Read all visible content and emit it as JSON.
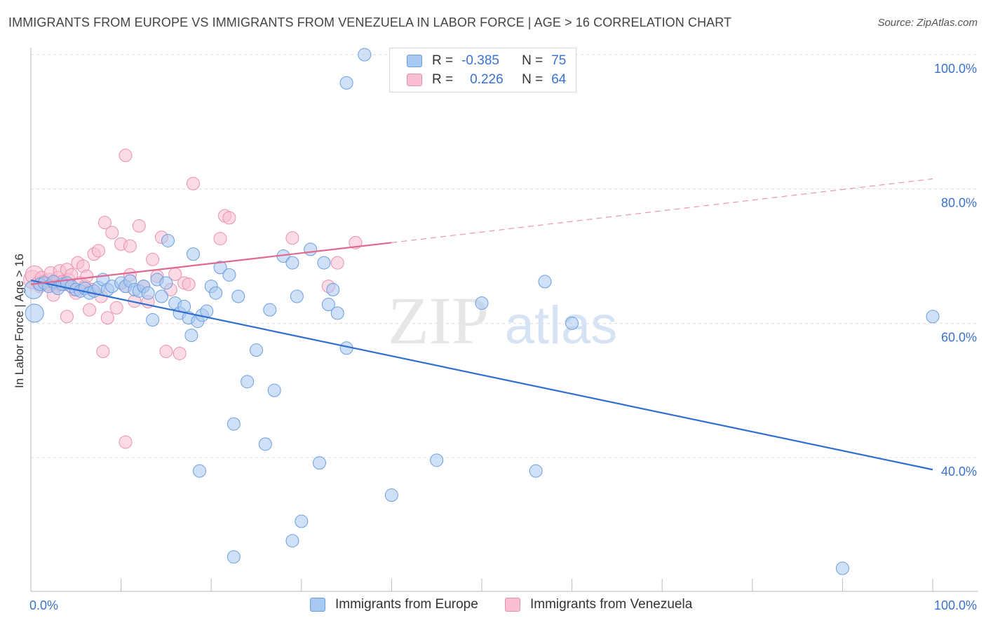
{
  "title": "IMMIGRANTS FROM EUROPE VS IMMIGRANTS FROM VENEZUELA IN LABOR FORCE | AGE > 16 CORRELATION CHART",
  "source": "Source: ZipAtlas.com",
  "watermark": {
    "zip": "ZIP",
    "atlas": "atlas"
  },
  "legend_top": {
    "rows": [
      {
        "r_label": "R =",
        "r_value": "-0.385",
        "n_label": "N =",
        "n_value": "75"
      },
      {
        "r_label": "R =",
        "r_value": "0.226",
        "n_label": "N =",
        "n_value": "64"
      }
    ]
  },
  "legend_bottom": {
    "europe": "Immigrants from Europe",
    "venezuela": "Immigrants from Venezuela"
  },
  "colors": {
    "europe_fill": "#a9c8f0",
    "europe_stroke": "#6a9ee0",
    "europe_line": "#2f6fd0",
    "venezuela_fill": "#f7bfd0",
    "venezuela_stroke": "#ea90ad",
    "venezuela_line": "#e2688f",
    "axis_label": "#3a72cf",
    "grid": "#dddddd"
  },
  "chart_data": {
    "type": "scatter",
    "title": "IMMIGRANTS FROM EUROPE VS IMMIGRANTS FROM VENEZUELA IN LABOR FORCE | AGE > 16 CORRELATION CHART",
    "xlabel": "",
    "ylabel": "In Labor Force | Age > 16",
    "xlim": [
      0,
      100
    ],
    "ylim": [
      20,
      102
    ],
    "x_tick_labels": [
      "0.0%",
      "100.0%"
    ],
    "y_ticks": [
      40,
      60,
      80,
      100
    ],
    "y_tick_labels": [
      "40.0%",
      "60.0%",
      "80.0%",
      "100.0%"
    ],
    "grid": true,
    "legend_position": "top-center",
    "series": [
      {
        "name": "Immigrants from Europe",
        "points": [
          [
            0.3,
            65.0
          ],
          [
            0.4,
            61.5
          ],
          [
            1.0,
            65.8
          ],
          [
            1.5,
            66.0
          ],
          [
            2.0,
            65.5
          ],
          [
            2.5,
            66.2
          ],
          [
            3.0,
            65.2
          ],
          [
            3.5,
            65.8
          ],
          [
            4.0,
            66.0
          ],
          [
            4.5,
            65.5
          ],
          [
            5.0,
            65.0
          ],
          [
            5.5,
            64.8
          ],
          [
            6.0,
            65.2
          ],
          [
            6.5,
            64.5
          ],
          [
            7.0,
            64.8
          ],
          [
            7.5,
            65.3
          ],
          [
            8.0,
            66.5
          ],
          [
            8.5,
            65.0
          ],
          [
            9.0,
            65.5
          ],
          [
            10.0,
            66.0
          ],
          [
            10.5,
            65.5
          ],
          [
            11.0,
            66.3
          ],
          [
            11.5,
            65.0
          ],
          [
            12.0,
            64.8
          ],
          [
            12.5,
            65.5
          ],
          [
            13.0,
            64.5
          ],
          [
            13.5,
            60.5
          ],
          [
            14.0,
            66.5
          ],
          [
            14.5,
            64.0
          ],
          [
            15.0,
            66.0
          ],
          [
            15.2,
            72.3
          ],
          [
            16.0,
            63.0
          ],
          [
            16.5,
            61.5
          ],
          [
            17.0,
            62.5
          ],
          [
            17.5,
            60.8
          ],
          [
            17.8,
            58.2
          ],
          [
            18.0,
            70.3
          ],
          [
            18.5,
            60.3
          ],
          [
            19.0,
            61.2
          ],
          [
            19.5,
            61.8
          ],
          [
            20.0,
            65.5
          ],
          [
            20.5,
            64.5
          ],
          [
            21.0,
            68.3
          ],
          [
            22.0,
            67.2
          ],
          [
            22.5,
            45.0
          ],
          [
            23.0,
            64.0
          ],
          [
            24.0,
            51.3
          ],
          [
            25.0,
            56.0
          ],
          [
            26.0,
            42.0
          ],
          [
            26.5,
            62.0
          ],
          [
            27.0,
            50.0
          ],
          [
            28.0,
            70.0
          ],
          [
            29.0,
            69.0
          ],
          [
            29.5,
            64.0
          ],
          [
            31.0,
            71.0
          ],
          [
            32.0,
            39.2
          ],
          [
            32.5,
            69.0
          ],
          [
            33.0,
            62.8
          ],
          [
            33.5,
            65.0
          ],
          [
            34.0,
            61.5
          ],
          [
            35.0,
            56.3
          ],
          [
            22.5,
            25.2
          ],
          [
            18.7,
            38.0
          ],
          [
            37.0,
            100.0
          ],
          [
            35.0,
            95.8
          ],
          [
            40.0,
            34.4
          ],
          [
            30.0,
            30.5
          ],
          [
            29.0,
            27.6
          ],
          [
            45.0,
            39.6
          ],
          [
            50.0,
            63.0
          ],
          [
            56.0,
            38.0
          ],
          [
            57.0,
            66.2
          ],
          [
            60.0,
            60.0
          ],
          [
            90.0,
            23.5
          ],
          [
            100.0,
            61.0
          ]
        ],
        "trend": {
          "x0": 0,
          "y0": 66.4,
          "x1": 100,
          "y1": 38.2
        }
      },
      {
        "name": "Immigrants from Venezuela",
        "points": [
          [
            0.2,
            66.5
          ],
          [
            0.4,
            67.2
          ],
          [
            0.8,
            66.0
          ],
          [
            1.0,
            65.5
          ],
          [
            1.2,
            66.8
          ],
          [
            1.5,
            66.2
          ],
          [
            1.8,
            65.8
          ],
          [
            2.0,
            66.5
          ],
          [
            2.2,
            67.5
          ],
          [
            2.5,
            66.0
          ],
          [
            2.8,
            65.5
          ],
          [
            3.0,
            66.8
          ],
          [
            3.2,
            67.8
          ],
          [
            3.5,
            66.2
          ],
          [
            3.8,
            65.8
          ],
          [
            4.0,
            68.0
          ],
          [
            4.2,
            66.5
          ],
          [
            4.5,
            67.2
          ],
          [
            4.8,
            65.0
          ],
          [
            5.0,
            64.5
          ],
          [
            5.2,
            69.0
          ],
          [
            5.5,
            66.0
          ],
          [
            5.8,
            68.5
          ],
          [
            6.0,
            65.5
          ],
          [
            6.2,
            67.0
          ],
          [
            6.5,
            62.0
          ],
          [
            6.8,
            65.0
          ],
          [
            7.0,
            70.3
          ],
          [
            7.5,
            70.8
          ],
          [
            7.8,
            64.0
          ],
          [
            8.0,
            55.8
          ],
          [
            8.2,
            75.0
          ],
          [
            8.5,
            60.8
          ],
          [
            9.0,
            73.5
          ],
          [
            9.5,
            62.3
          ],
          [
            10.0,
            71.8
          ],
          [
            10.5,
            65.5
          ],
          [
            11.0,
            67.2
          ],
          [
            11.5,
            63.3
          ],
          [
            12.0,
            74.5
          ],
          [
            12.5,
            65.5
          ],
          [
            13.0,
            63.2
          ],
          [
            13.5,
            69.5
          ],
          [
            14.0,
            67.0
          ],
          [
            14.5,
            72.8
          ],
          [
            15.0,
            55.8
          ],
          [
            15.5,
            65.0
          ],
          [
            16.0,
            67.3
          ],
          [
            16.5,
            55.5
          ],
          [
            17.0,
            66.0
          ],
          [
            17.5,
            65.8
          ],
          [
            18.0,
            80.8
          ],
          [
            21.0,
            72.6
          ],
          [
            21.5,
            76.0
          ],
          [
            22.0,
            75.7
          ],
          [
            29.0,
            72.7
          ],
          [
            10.5,
            42.3
          ],
          [
            11.0,
            71.5
          ],
          [
            33.0,
            65.5
          ],
          [
            34.0,
            69.0
          ],
          [
            36.0,
            72.0
          ],
          [
            4.0,
            61.0
          ],
          [
            2.5,
            64.2
          ],
          [
            10.5,
            85.0
          ]
        ],
        "trend": {
          "x0": 0,
          "y0": 65.8,
          "x1": 40,
          "y1": 72.0
        },
        "trend_extension": {
          "x0": 40,
          "y0": 72.0,
          "x1": 100,
          "y1": 81.5
        }
      }
    ]
  }
}
